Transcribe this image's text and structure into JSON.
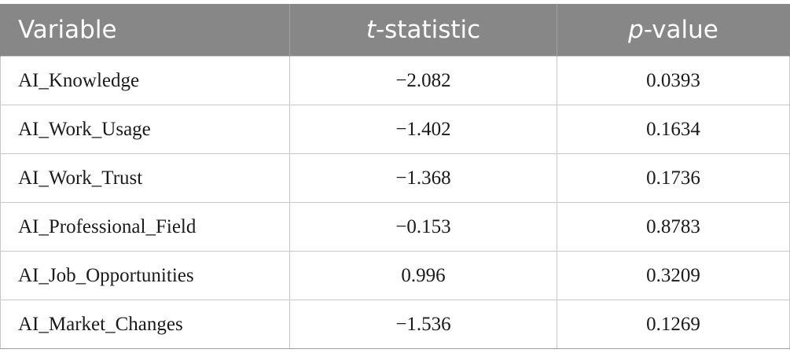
{
  "header": {
    "variable": "Variable",
    "t_italic": "t",
    "t_rest": "-statistic",
    "p_italic": "p",
    "p_rest": "-value"
  },
  "rows": [
    {
      "variable": "AI_Knowledge",
      "t": "−2.082",
      "p": "0.0393"
    },
    {
      "variable": "AI_Work_Usage",
      "t": "−1.402",
      "p": "0.1634"
    },
    {
      "variable": "AI_Work_Trust",
      "t": "−1.368",
      "p": "0.1736"
    },
    {
      "variable": "AI_Professional_Field",
      "t": "−0.153",
      "p": "0.8783"
    },
    {
      "variable": "AI_Job_Opportunities",
      "t": "0.996",
      "p": "0.3209"
    },
    {
      "variable": "AI_Market_Changes",
      "t": "−1.536",
      "p": "0.1269"
    }
  ],
  "colors": {
    "header_background": "#878787",
    "header_text": "#ffffff",
    "grid_lines": "#c8c8c8"
  }
}
